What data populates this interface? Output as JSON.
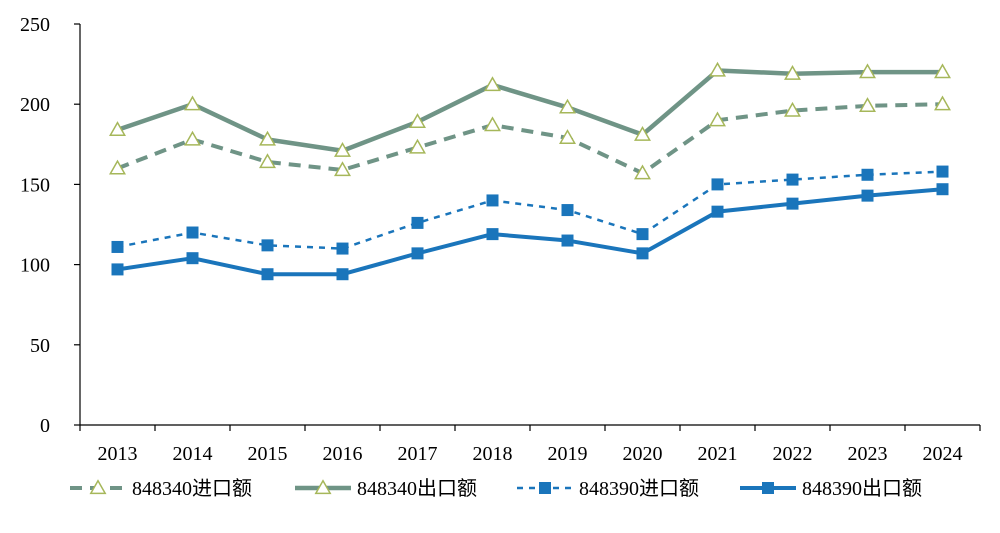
{
  "chart_data": {
    "type": "line",
    "title": "",
    "xlabel": "",
    "ylabel": "",
    "ylim": [
      0,
      250
    ],
    "yticks": [
      0,
      50,
      100,
      150,
      200,
      250
    ],
    "categories": [
      "2013",
      "2014",
      "2015",
      "2016",
      "2017",
      "2018",
      "2019",
      "2020",
      "2021",
      "2022",
      "2023",
      "2024"
    ],
    "grid": false,
    "legend_position": "bottom",
    "series": [
      {
        "name": "848340进口额",
        "color": "#6f9486",
        "line_style": "dashed",
        "marker": "triangle-open",
        "marker_color": "#a6b75a",
        "values": [
          160,
          178,
          164,
          159,
          173,
          187,
          179,
          157,
          190,
          196,
          199,
          200
        ]
      },
      {
        "name": "848340出口额",
        "color": "#6f9486",
        "line_style": "solid",
        "marker": "triangle-open",
        "marker_color": "#a6b75a",
        "values": [
          184,
          200,
          178,
          171,
          189,
          212,
          198,
          181,
          221,
          219,
          220,
          220
        ]
      },
      {
        "name": "848390进口额",
        "color": "#1a75bb",
        "line_style": "dotted",
        "marker": "square",
        "marker_color": "#1a75bb",
        "values": [
          111,
          120,
          112,
          110,
          126,
          140,
          134,
          119,
          150,
          153,
          156,
          158
        ]
      },
      {
        "name": "848390出口额",
        "color": "#1a75bb",
        "line_style": "solid",
        "marker": "square",
        "marker_color": "#1a75bb",
        "values": [
          97,
          104,
          94,
          94,
          107,
          119,
          115,
          107,
          133,
          138,
          143,
          147
        ]
      }
    ]
  }
}
